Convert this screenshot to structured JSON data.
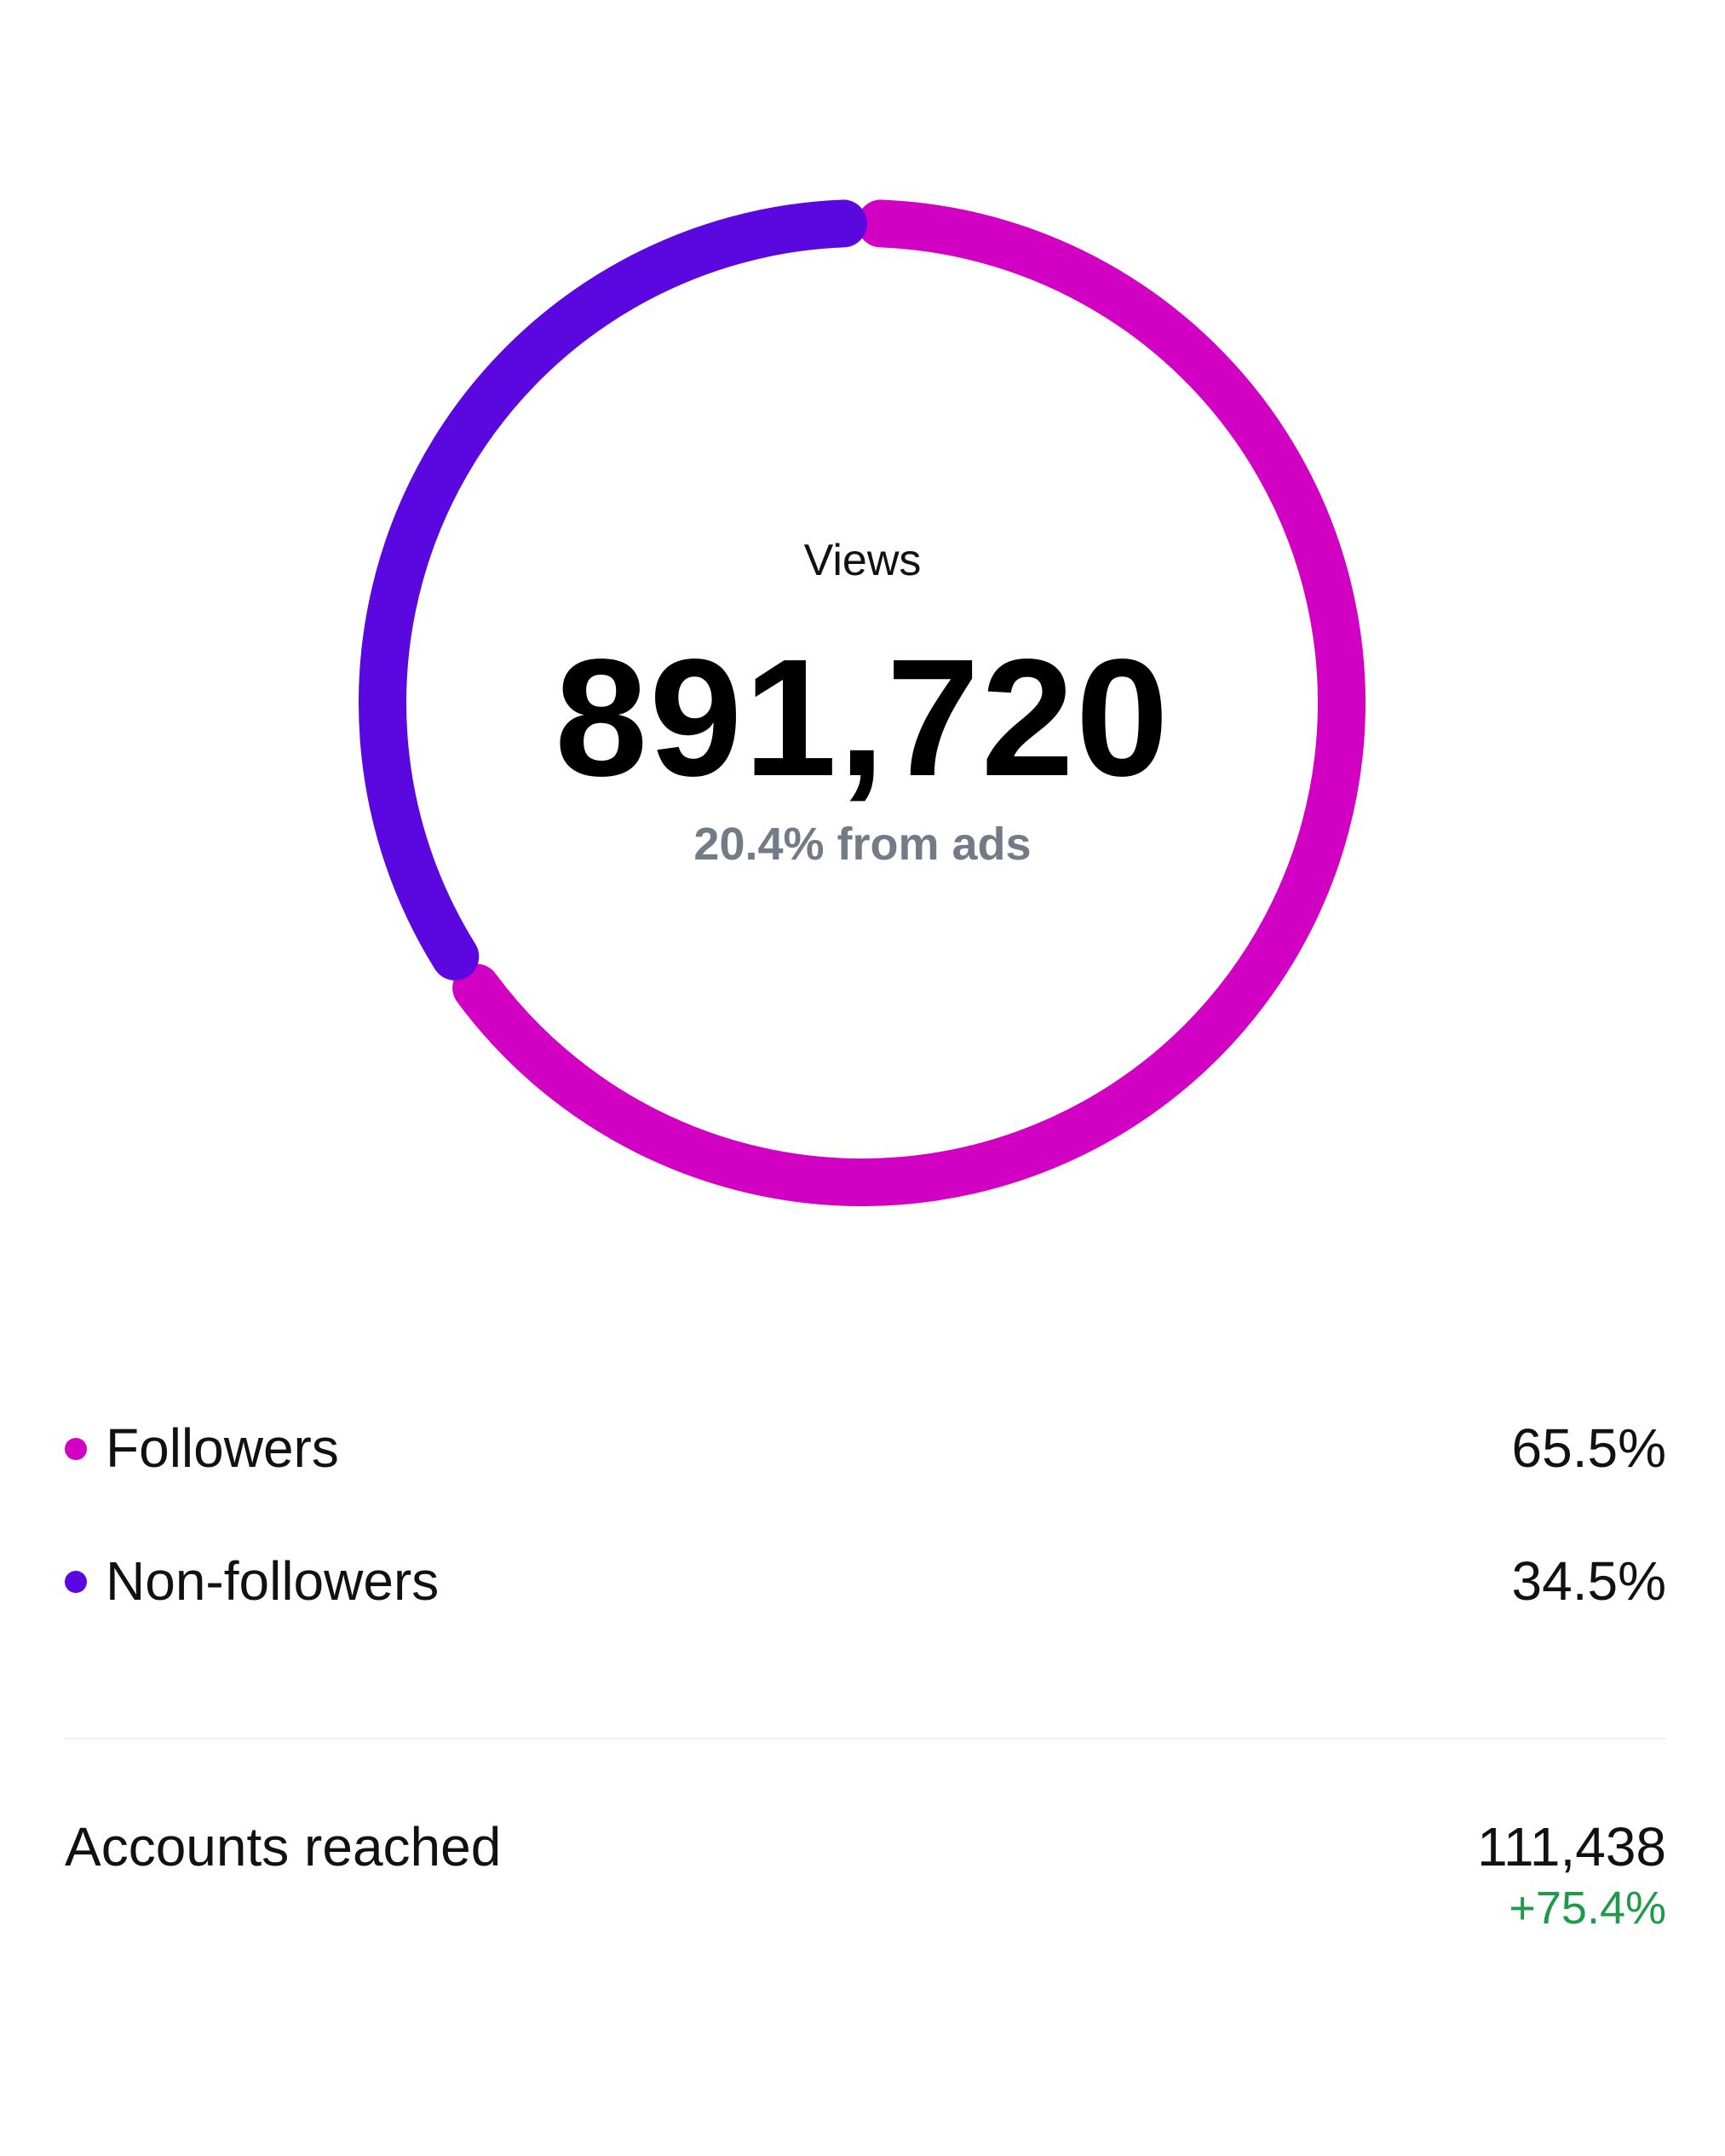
{
  "views": {
    "label": "Views",
    "value": "891,720",
    "ads_note": "20.4% from ads"
  },
  "chart_data": {
    "type": "pie",
    "categories": [
      "Followers",
      "Non-followers"
    ],
    "values": [
      65.5,
      34.5
    ],
    "colors": [
      "#d100c3",
      "#5a08df"
    ]
  },
  "legend": [
    {
      "label": "Followers",
      "value": "65.5%",
      "color": "#d100c3"
    },
    {
      "label": "Non-followers",
      "value": "34.5%",
      "color": "#5a08df"
    }
  ],
  "accounts_reached": {
    "label": "Accounts reached",
    "value": "111,438",
    "change": "+75.4%",
    "change_color": "#1f9a4a"
  }
}
